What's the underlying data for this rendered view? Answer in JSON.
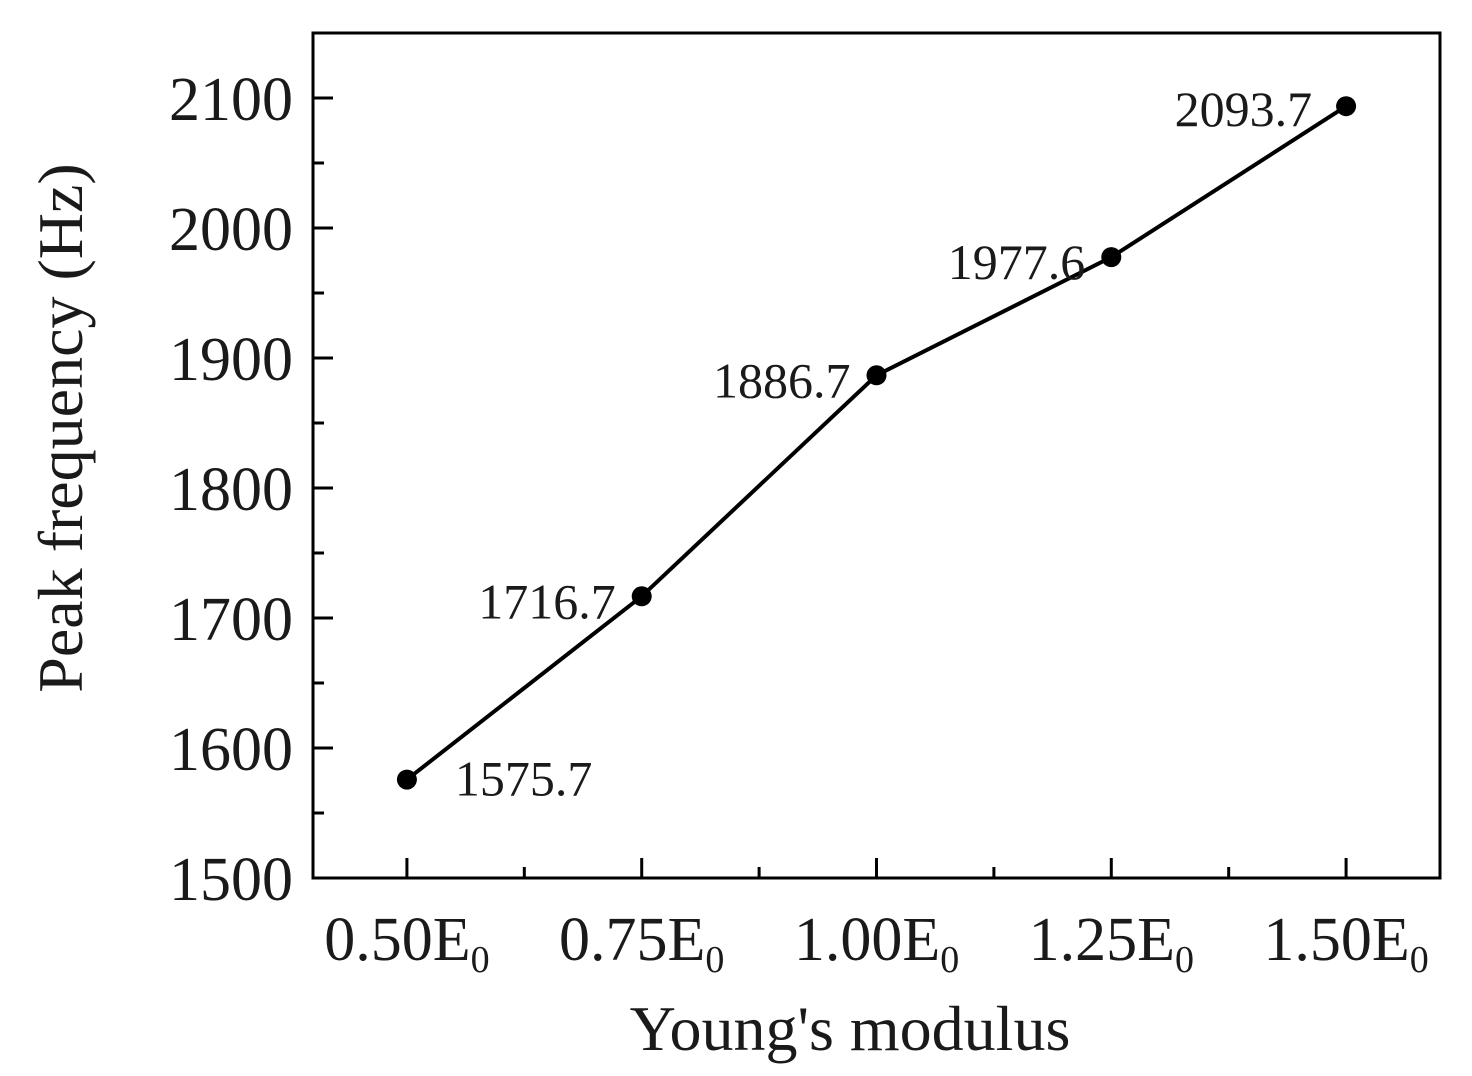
{
  "chart_data": {
    "type": "line",
    "title": "",
    "xlabel": "Young's modulus",
    "ylabel": "Peak frequency (Hz)",
    "x": [
      0.5,
      0.75,
      1.0,
      1.25,
      1.5
    ],
    "x_tick_labels": [
      {
        "main": "0.50E",
        "sub": "0"
      },
      {
        "main": "0.75E",
        "sub": "0"
      },
      {
        "main": "1.00E",
        "sub": "0"
      },
      {
        "main": "1.25E",
        "sub": "0"
      },
      {
        "main": "1.50E",
        "sub": "0"
      }
    ],
    "series": [
      {
        "values": [
          1575.7,
          1716.7,
          1886.7,
          1977.6,
          2093.7
        ],
        "data_labels": [
          "1575.7",
          "1716.7",
          "1886.7",
          "1977.6",
          "2093.7"
        ],
        "color": "#000000",
        "marker": "circle"
      }
    ],
    "y_ticks": [
      1500,
      1600,
      1700,
      1800,
      1900,
      2000,
      2100
    ],
    "y_tick_labels": [
      "1500",
      "1600",
      "1700",
      "1800",
      "1900",
      "2000",
      "2100"
    ],
    "xlim": [
      0.4,
      1.6
    ],
    "ylim": [
      1500,
      2150
    ],
    "grid": false,
    "legend": "none"
  }
}
